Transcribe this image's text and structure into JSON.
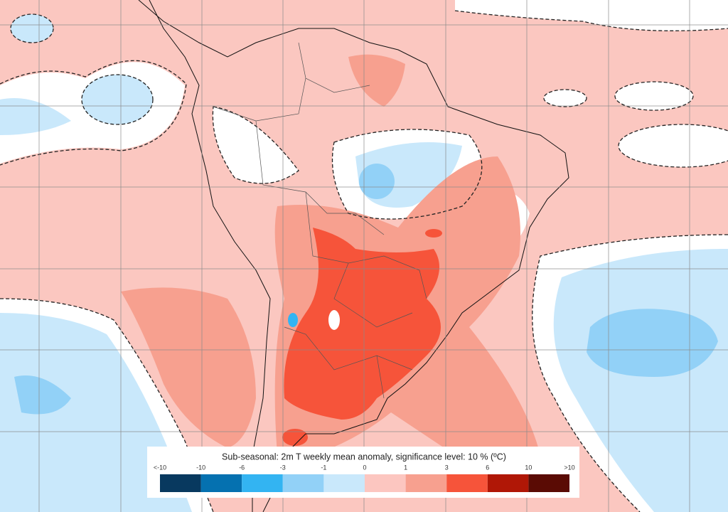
{
  "legend": {
    "title": "Sub-seasonal: 2m T weekly mean anomaly, significance level: 10 % (ºC)",
    "labels": [
      "<-10",
      "-10",
      "-6",
      "-3",
      "-1",
      "0",
      "1",
      "3",
      "6",
      "10",
      ">10"
    ],
    "colors": [
      "#08395f",
      "#0571b0",
      "#33b4f2",
      "#92d1f7",
      "#c9e8fb",
      "#fcc6c0",
      "#f7a08f",
      "#f6543a",
      "#b01706",
      "#5a0b04"
    ]
  }
}
